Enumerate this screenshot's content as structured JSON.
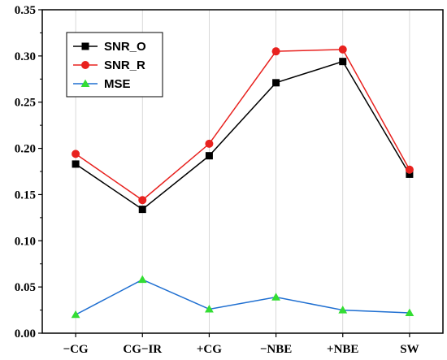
{
  "chart_data": {
    "type": "line",
    "categories": [
      "−CG",
      "CG−IR",
      "+CG",
      "−NBE",
      "+NBE",
      "SW"
    ],
    "ylim": [
      0.0,
      0.35
    ],
    "yticks": [
      "0.00",
      "0.05",
      "0.10",
      "0.15",
      "0.20",
      "0.25",
      "0.30",
      "0.35"
    ],
    "grid": "vertical",
    "legend_position": "top-left",
    "series": [
      {
        "name": "SNR_O",
        "color": "#000000",
        "marker": "square",
        "values": [
          0.183,
          0.134,
          0.192,
          0.271,
          0.294,
          0.172
        ]
      },
      {
        "name": "SNR_R",
        "color": "#e8221f",
        "marker": "circle",
        "values": [
          0.194,
          0.144,
          0.205,
          0.305,
          0.307,
          0.177
        ]
      },
      {
        "name": "MSE",
        "color": "#1f6fd1",
        "marker": "triangle",
        "marker_color": "#33dd33",
        "values": [
          0.02,
          0.058,
          0.026,
          0.039,
          0.025,
          0.022
        ]
      }
    ]
  }
}
